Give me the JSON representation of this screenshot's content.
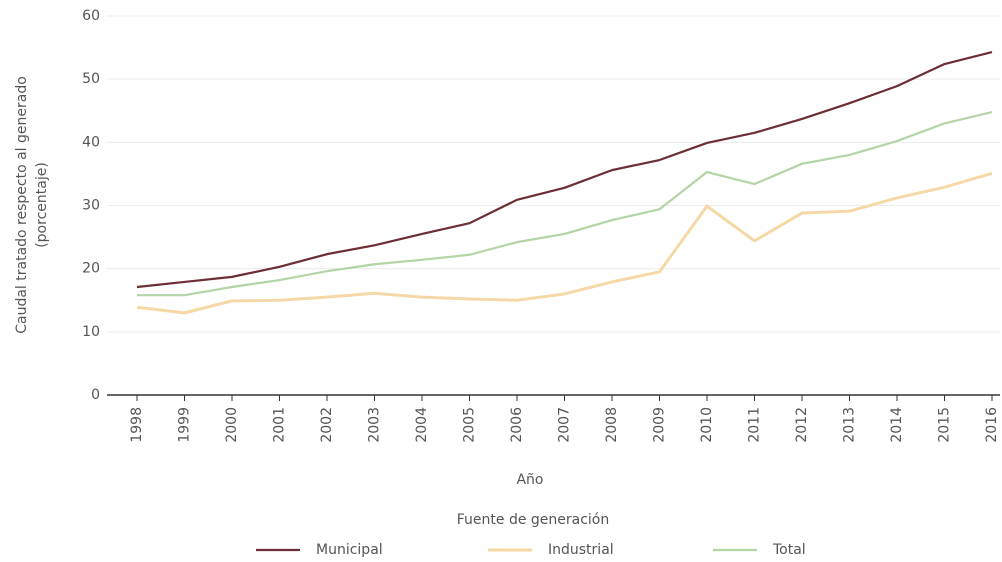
{
  "chart_data": {
    "type": "line",
    "ylabel": [
      "Caudal tratado respecto al generado",
      "(porcentaje)"
    ],
    "xlabel": "Año",
    "legend_title": "Fuente de generación",
    "categories": [
      "1998",
      "1999",
      "2000",
      "2001",
      "2002",
      "2003",
      "2004",
      "2005",
      "2006",
      "2007",
      "2008",
      "2009",
      "2010",
      "2011",
      "2012",
      "2013",
      "2014",
      "2015",
      "2016"
    ],
    "series": [
      {
        "name": "Municipal",
        "color": "#6b2e35",
        "values": [
          17.1,
          17.9,
          18.7,
          20.3,
          22.3,
          23.7,
          25.5,
          27.2,
          30.9,
          32.8,
          35.6,
          37.2,
          39.9,
          41.5,
          43.7,
          46.2,
          48.9,
          52.4,
          54.3
        ]
      },
      {
        "name": "Industrial",
        "color": "#f4d9a6",
        "values": [
          13.9,
          13.0,
          14.9,
          15.0,
          15.5,
          16.1,
          15.5,
          15.2,
          15.0,
          16.0,
          17.9,
          19.5,
          29.9,
          24.4,
          28.8,
          29.1,
          31.2,
          32.9,
          35.1
        ]
      },
      {
        "name": "Total",
        "color": "#b3d4a5",
        "values": [
          15.8,
          15.8,
          17.1,
          18.2,
          19.6,
          20.7,
          21.4,
          22.2,
          24.2,
          25.5,
          27.7,
          29.4,
          35.3,
          33.4,
          36.6,
          38.0,
          40.2,
          43.0,
          44.8
        ]
      }
    ],
    "ylim": [
      0,
      60
    ],
    "yticks": [
      0,
      10,
      20,
      30,
      40,
      50,
      60
    ],
    "grid": true
  }
}
